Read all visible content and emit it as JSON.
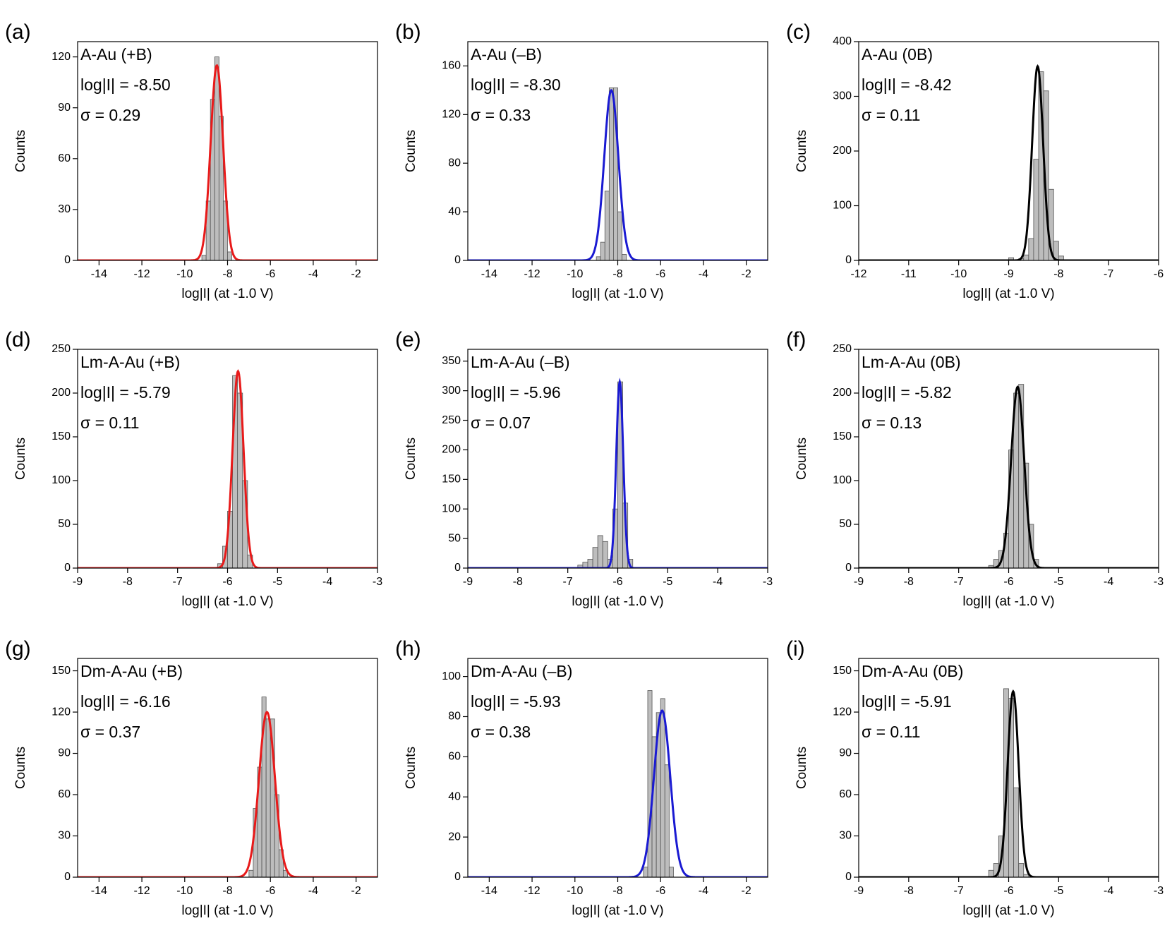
{
  "chart_data": [
    {
      "type": "histogram",
      "panel_label": "(a)",
      "annotations": [
        "A-Au (+B)",
        "log|I| = -8.50",
        "σ = 0.29"
      ],
      "xlabel": "log|I| (at -1.0 V)",
      "ylabel": "Counts",
      "bins": [
        -9.2,
        -9.0,
        -8.8,
        -8.6,
        -8.4,
        -8.2,
        -8.0,
        -7.8
      ],
      "values": [
        3,
        35,
        95,
        120,
        85,
        35,
        5
      ],
      "color": "#bdbdbd",
      "fit": {
        "center": -8.5,
        "sigma": 0.29,
        "peak": 115,
        "color": "#e81a1a"
      },
      "xlim": [
        -15,
        -1
      ],
      "xticks": [
        -14,
        -12,
        -10,
        -8,
        -6,
        -4,
        -2
      ],
      "ylim": [
        0,
        129
      ],
      "yticks": [
        0,
        30,
        60,
        90,
        120
      ]
    },
    {
      "type": "histogram",
      "panel_label": "(b)",
      "annotations": [
        "A-Au (–B)",
        "log|I| = -8.30",
        "σ = 0.33"
      ],
      "xlabel": "log|I| (at -1.0 V)",
      "ylabel": "Counts",
      "bins": [
        -9.0,
        -8.8,
        -8.6,
        -8.4,
        -8.2,
        -8.0,
        -7.8,
        -7.6
      ],
      "values": [
        3,
        15,
        57,
        142,
        142,
        40,
        5
      ],
      "color": "#bdbdbd",
      "fit": {
        "center": -8.3,
        "sigma": 0.33,
        "peak": 140,
        "color": "#1a1ad2"
      },
      "xlim": [
        -15,
        -1
      ],
      "xticks": [
        -14,
        -12,
        -10,
        -8,
        -6,
        -4,
        -2
      ],
      "ylim": [
        0,
        180
      ],
      "yticks": [
        0,
        40,
        80,
        120,
        160
      ]
    },
    {
      "type": "histogram",
      "panel_label": "(c)",
      "annotations": [
        "A-Au (0B)",
        "log|I| = -8.42",
        "σ = 0.11"
      ],
      "xlabel": "log|I| (at -1.0 V)",
      "ylabel": "Counts",
      "bins": [
        -9.0,
        -8.9,
        -8.8,
        -8.7,
        -8.6,
        -8.5,
        -8.4,
        -8.3,
        -8.2,
        -8.1,
        -8.0,
        -7.9
      ],
      "values": [
        5,
        0,
        3,
        10,
        40,
        185,
        345,
        310,
        130,
        35,
        8
      ],
      "color": "#bdbdbd",
      "fit": {
        "center": -8.42,
        "sigma": 0.11,
        "peak": 355,
        "color": "#000000"
      },
      "xlim": [
        -12,
        -6
      ],
      "xticks": [
        -12,
        -11,
        -10,
        -9,
        -8,
        -7,
        -6
      ],
      "ylim": [
        0,
        400
      ],
      "yticks": [
        0,
        100,
        200,
        300,
        400
      ]
    },
    {
      "type": "histogram",
      "panel_label": "(d)",
      "annotations": [
        "Lm-A-Au (+B)",
        "log|I| = -5.79",
        "σ = 0.11"
      ],
      "xlabel": "log|I| (at -1.0 V)",
      "ylabel": "Counts",
      "bins": [
        -6.2,
        -6.1,
        -6.0,
        -5.9,
        -5.8,
        -5.7,
        -5.6,
        -5.5
      ],
      "values": [
        5,
        25,
        65,
        220,
        200,
        100,
        15
      ],
      "color": "#bdbdbd",
      "fit": {
        "center": -5.79,
        "sigma": 0.11,
        "peak": 225,
        "color": "#e81a1a"
      },
      "xlim": [
        -9,
        -3
      ],
      "xticks": [
        -9,
        -8,
        -7,
        -6,
        -5,
        -4,
        -3
      ],
      "ylim": [
        0,
        250
      ],
      "yticks": [
        0,
        50,
        100,
        150,
        200,
        250
      ]
    },
    {
      "type": "histogram",
      "panel_label": "(e)",
      "annotations": [
        "Lm-A-Au (–B)",
        "log|I| = -5.96",
        "σ = 0.07"
      ],
      "xlabel": "log|I| (at -1.0 V)",
      "ylabel": "Counts",
      "bins": [
        -6.8,
        -6.7,
        -6.6,
        -6.5,
        -6.4,
        -6.3,
        -6.2,
        -6.1,
        -6.0,
        -5.9,
        -5.8,
        -5.7
      ],
      "values": [
        5,
        10,
        15,
        35,
        55,
        45,
        15,
        100,
        315,
        110,
        15
      ],
      "color": "#bdbdbd",
      "fit": {
        "center": -5.96,
        "sigma": 0.07,
        "peak": 315,
        "color": "#1a1ad2"
      },
      "xlim": [
        -9,
        -3
      ],
      "xticks": [
        -9,
        -8,
        -7,
        -6,
        -5,
        -4,
        -3
      ],
      "ylim": [
        0,
        370
      ],
      "yticks": [
        0,
        50,
        100,
        150,
        200,
        250,
        300,
        350
      ]
    },
    {
      "type": "histogram",
      "panel_label": "(f)",
      "annotations": [
        "Lm-A-Au (0B)",
        "log|I| = -5.82",
        "σ = 0.13"
      ],
      "xlabel": "log|I| (at -1.0 V)",
      "ylabel": "Counts",
      "bins": [
        -6.4,
        -6.3,
        -6.2,
        -6.1,
        -6.0,
        -5.9,
        -5.8,
        -5.7,
        -5.6,
        -5.5,
        -5.4
      ],
      "values": [
        3,
        10,
        20,
        40,
        135,
        200,
        210,
        120,
        50,
        10
      ],
      "color": "#bdbdbd",
      "fit": {
        "center": -5.82,
        "sigma": 0.13,
        "peak": 207,
        "color": "#000000"
      },
      "xlim": [
        -9,
        -3
      ],
      "xticks": [
        -9,
        -8,
        -7,
        -6,
        -5,
        -4,
        -3
      ],
      "ylim": [
        0,
        250
      ],
      "yticks": [
        0,
        50,
        100,
        150,
        200,
        250
      ]
    },
    {
      "type": "histogram",
      "panel_label": "(g)",
      "annotations": [
        "Dm-A-Au (+B)",
        "log|I| = -6.16",
        "σ = 0.37"
      ],
      "xlabel": "log|I| (at -1.0 V)",
      "ylabel": "Counts",
      "bins": [
        -7.0,
        -6.8,
        -6.6,
        -6.4,
        -6.2,
        -6.0,
        -5.8,
        -5.6,
        -5.4,
        -5.2
      ],
      "values": [
        5,
        50,
        80,
        131,
        115,
        115,
        60,
        20,
        5
      ],
      "color": "#bdbdbd",
      "fit": {
        "center": -6.16,
        "sigma": 0.37,
        "peak": 120,
        "color": "#e81a1a"
      },
      "xlim": [
        -15,
        -1
      ],
      "xticks": [
        -14,
        -12,
        -10,
        -8,
        -6,
        -4,
        -2
      ],
      "ylim": [
        0,
        159
      ],
      "yticks": [
        0,
        30,
        60,
        90,
        120,
        150
      ]
    },
    {
      "type": "histogram",
      "panel_label": "(h)",
      "annotations": [
        "Dm-A-Au (–B)",
        "log|I| = -5.93",
        "σ = 0.38"
      ],
      "xlabel": "log|I| (at -1.0 V)",
      "ylabel": "Counts",
      "bins": [
        -6.8,
        -6.6,
        -6.4,
        -6.2,
        -6.0,
        -5.8,
        -5.6,
        -5.4
      ],
      "values": [
        5,
        93,
        70,
        82,
        89,
        56,
        5
      ],
      "color": "#bdbdbd",
      "fit": {
        "center": -5.93,
        "sigma": 0.38,
        "peak": 83,
        "color": "#1a1ad2"
      },
      "xlim": [
        -15,
        -1
      ],
      "xticks": [
        -14,
        -12,
        -10,
        -8,
        -6,
        -4,
        -2
      ],
      "ylim": [
        0,
        109
      ],
      "yticks": [
        0,
        20,
        40,
        60,
        80,
        100
      ]
    },
    {
      "type": "histogram",
      "panel_label": "(i)",
      "annotations": [
        "Dm-A-Au (0B)",
        "log|I| = -5.91",
        "σ = 0.11"
      ],
      "xlabel": "log|I| (at -1.0 V)",
      "ylabel": "Counts",
      "bins": [
        -6.4,
        -6.3,
        -6.2,
        -6.1,
        -6.0,
        -5.9,
        -5.8,
        -5.7,
        -5.6
      ],
      "values": [
        5,
        10,
        30,
        137,
        130,
        65,
        10,
        2
      ],
      "color": "#bdbdbd",
      "fit": {
        "center": -5.91,
        "sigma": 0.11,
        "peak": 135,
        "color": "#000000"
      },
      "xlim": [
        -9,
        -3
      ],
      "xticks": [
        -9,
        -8,
        -7,
        -6,
        -5,
        -4,
        -3
      ],
      "ylim": [
        0,
        159
      ],
      "yticks": [
        0,
        30,
        60,
        90,
        120,
        150
      ]
    }
  ]
}
